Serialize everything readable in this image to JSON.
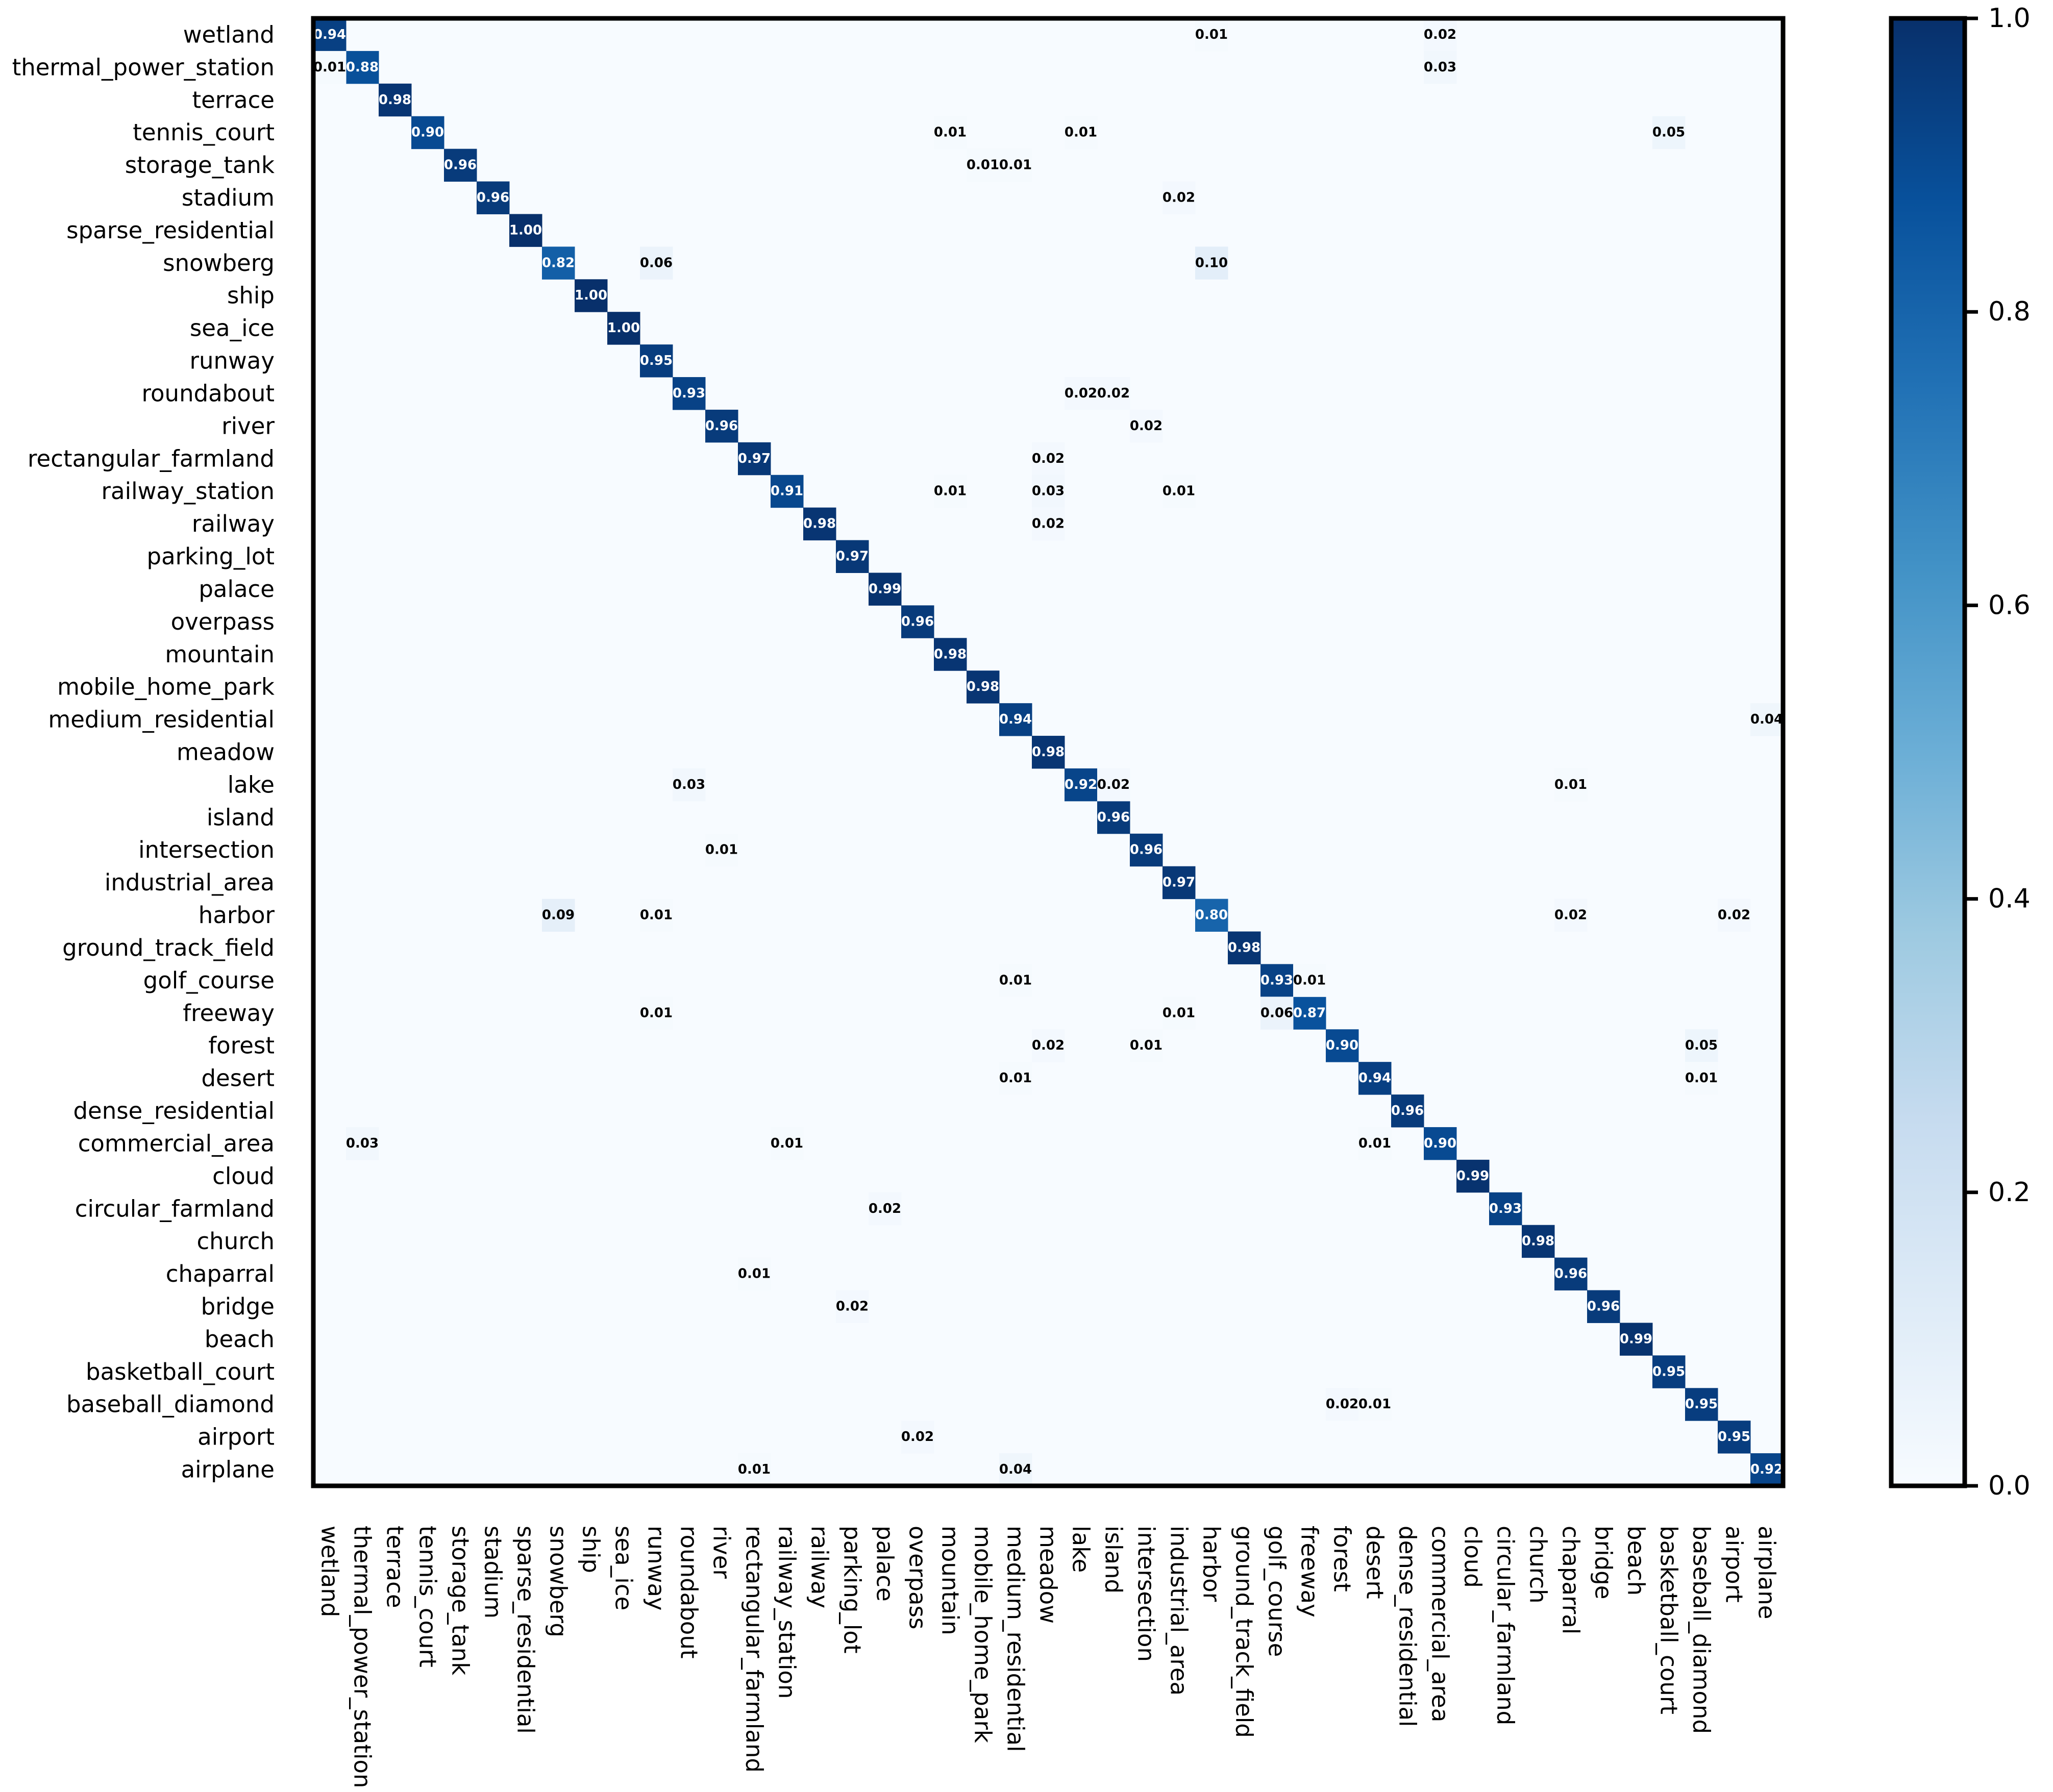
{
  "chart_data": {
    "type": "heatmap",
    "title": "",
    "xlabel": "",
    "ylabel": "",
    "labels": [
      "wetland",
      "thermal_power_station",
      "terrace",
      "tennis_court",
      "storage_tank",
      "stadium",
      "sparse_residential",
      "snowberg",
      "ship",
      "sea_ice",
      "runway",
      "roundabout",
      "river",
      "rectangular_farmland",
      "railway_station",
      "railway",
      "parking_lot",
      "palace",
      "overpass",
      "mountain",
      "mobile_home_park",
      "medium_residential",
      "meadow",
      "lake",
      "island",
      "intersection",
      "industrial_area",
      "harbor",
      "ground_track_field",
      "golf_course",
      "freeway",
      "forest",
      "desert",
      "dense_residential",
      "commercial_area",
      "cloud",
      "circular_farmland",
      "church",
      "chaparral",
      "bridge",
      "beach",
      "basketball_court",
      "baseball_diamond",
      "airport",
      "airplane"
    ],
    "diagonal": [
      0.94,
      0.88,
      0.98,
      0.9,
      0.96,
      0.96,
      1.0,
      0.82,
      1.0,
      1.0,
      0.95,
      0.93,
      0.96,
      0.97,
      0.91,
      0.98,
      0.97,
      0.99,
      0.96,
      0.98,
      0.98,
      0.94,
      0.98,
      0.92,
      0.96,
      0.96,
      0.97,
      0.8,
      0.98,
      0.93,
      0.87,
      0.9,
      0.94,
      0.96,
      0.9,
      0.99,
      0.93,
      0.98,
      0.96,
      0.96,
      0.99,
      0.95,
      0.95,
      0.95,
      0.92
    ],
    "diagonal_labels": [
      "0.94",
      "0.88",
      "0.98",
      "0.90",
      "0.96",
      "0.96",
      "1.00",
      "0.82",
      "1.00",
      "1.00",
      "0.95",
      "0.93",
      "0.96",
      "0.97",
      "0.91",
      "0.98",
      "0.97",
      "0.99",
      "0.96",
      "0.98",
      "0.98",
      "0.94",
      "0.98",
      "0.92",
      "0.96",
      "0.96",
      "0.97",
      "0.80",
      "0.98",
      "0.93",
      "0.87",
      "0.90",
      "0.94",
      "0.96",
      "0.90",
      "0.99",
      "0.93",
      "0.98",
      "0.96",
      "0.96",
      "0.99",
      "0.95",
      "0.95",
      "0.95",
      "0.92"
    ],
    "off_diagonal": [
      {
        "row": 0,
        "col": 27,
        "value": 0.01,
        "label": "0.01"
      },
      {
        "row": 0,
        "col": 34,
        "value": 0.02,
        "label": "0.02"
      },
      {
        "row": 1,
        "col": 0,
        "value": 0.01,
        "label": "0.01"
      },
      {
        "row": 1,
        "col": 34,
        "value": 0.03,
        "label": "0.03"
      },
      {
        "row": 3,
        "col": 19,
        "value": 0.01,
        "label": "0.01"
      },
      {
        "row": 3,
        "col": 23,
        "value": 0.01,
        "label": "0.01"
      },
      {
        "row": 3,
        "col": 41,
        "value": 0.05,
        "label": "0.05"
      },
      {
        "row": 4,
        "col": 20,
        "value": 0.01,
        "label": "0.01"
      },
      {
        "row": 4,
        "col": 21,
        "value": 0.01,
        "label": "0.01"
      },
      {
        "row": 5,
        "col": 26,
        "value": 0.02,
        "label": "0.02"
      },
      {
        "row": 7,
        "col": 10,
        "value": 0.06,
        "label": "0.06"
      },
      {
        "row": 7,
        "col": 27,
        "value": 0.1,
        "label": "0.10"
      },
      {
        "row": 11,
        "col": 23,
        "value": 0.02,
        "label": "0.02"
      },
      {
        "row": 11,
        "col": 24,
        "value": 0.02,
        "label": "0.02"
      },
      {
        "row": 12,
        "col": 25,
        "value": 0.02,
        "label": "0.02"
      },
      {
        "row": 13,
        "col": 22,
        "value": 0.02,
        "label": "0.02"
      },
      {
        "row": 14,
        "col": 19,
        "value": 0.01,
        "label": "0.01"
      },
      {
        "row": 14,
        "col": 22,
        "value": 0.03,
        "label": "0.03"
      },
      {
        "row": 14,
        "col": 26,
        "value": 0.01,
        "label": "0.01"
      },
      {
        "row": 15,
        "col": 22,
        "value": 0.02,
        "label": "0.02"
      },
      {
        "row": 21,
        "col": 44,
        "value": 0.04,
        "label": "0.04"
      },
      {
        "row": 23,
        "col": 11,
        "value": 0.03,
        "label": "0.03"
      },
      {
        "row": 23,
        "col": 24,
        "value": 0.02,
        "label": "0.02"
      },
      {
        "row": 23,
        "col": 38,
        "value": 0.01,
        "label": "0.01"
      },
      {
        "row": 25,
        "col": 12,
        "value": 0.01,
        "label": "0.01"
      },
      {
        "row": 27,
        "col": 7,
        "value": 0.09,
        "label": "0.09"
      },
      {
        "row": 27,
        "col": 10,
        "value": 0.01,
        "label": "0.01"
      },
      {
        "row": 27,
        "col": 38,
        "value": 0.02,
        "label": "0.02"
      },
      {
        "row": 27,
        "col": 43,
        "value": 0.02,
        "label": "0.02"
      },
      {
        "row": 29,
        "col": 21,
        "value": 0.01,
        "label": "0.01"
      },
      {
        "row": 29,
        "col": 30,
        "value": 0.01,
        "label": "0.01"
      },
      {
        "row": 30,
        "col": 10,
        "value": 0.01,
        "label": "0.01"
      },
      {
        "row": 30,
        "col": 26,
        "value": 0.01,
        "label": "0.01"
      },
      {
        "row": 30,
        "col": 29,
        "value": 0.06,
        "label": "0.06"
      },
      {
        "row": 31,
        "col": 22,
        "value": 0.02,
        "label": "0.02"
      },
      {
        "row": 31,
        "col": 25,
        "value": 0.01,
        "label": "0.01"
      },
      {
        "row": 31,
        "col": 42,
        "value": 0.05,
        "label": "0.05"
      },
      {
        "row": 32,
        "col": 21,
        "value": 0.01,
        "label": "0.01"
      },
      {
        "row": 32,
        "col": 42,
        "value": 0.01,
        "label": "0.01"
      },
      {
        "row": 34,
        "col": 1,
        "value": 0.03,
        "label": "0.03"
      },
      {
        "row": 34,
        "col": 14,
        "value": 0.01,
        "label": "0.01"
      },
      {
        "row": 34,
        "col": 32,
        "value": 0.01,
        "label": "0.01"
      },
      {
        "row": 36,
        "col": 17,
        "value": 0.02,
        "label": "0.02"
      },
      {
        "row": 38,
        "col": 13,
        "value": 0.01,
        "label": "0.01"
      },
      {
        "row": 39,
        "col": 16,
        "value": 0.02,
        "label": "0.02"
      },
      {
        "row": 42,
        "col": 31,
        "value": 0.02,
        "label": "0.02"
      },
      {
        "row": 42,
        "col": 32,
        "value": 0.01,
        "label": "0.01"
      },
      {
        "row": 43,
        "col": 18,
        "value": 0.02,
        "label": "0.02"
      },
      {
        "row": 44,
        "col": 13,
        "value": 0.01,
        "label": "0.01"
      },
      {
        "row": 44,
        "col": 21,
        "value": 0.04,
        "label": "0.04"
      }
    ],
    "colorbar": {
      "range": [
        0.0,
        1.0
      ],
      "ticks": [
        "0.0",
        "0.2",
        "0.4",
        "0.6",
        "0.8",
        "1.0"
      ],
      "colormap": "Blues"
    }
  }
}
